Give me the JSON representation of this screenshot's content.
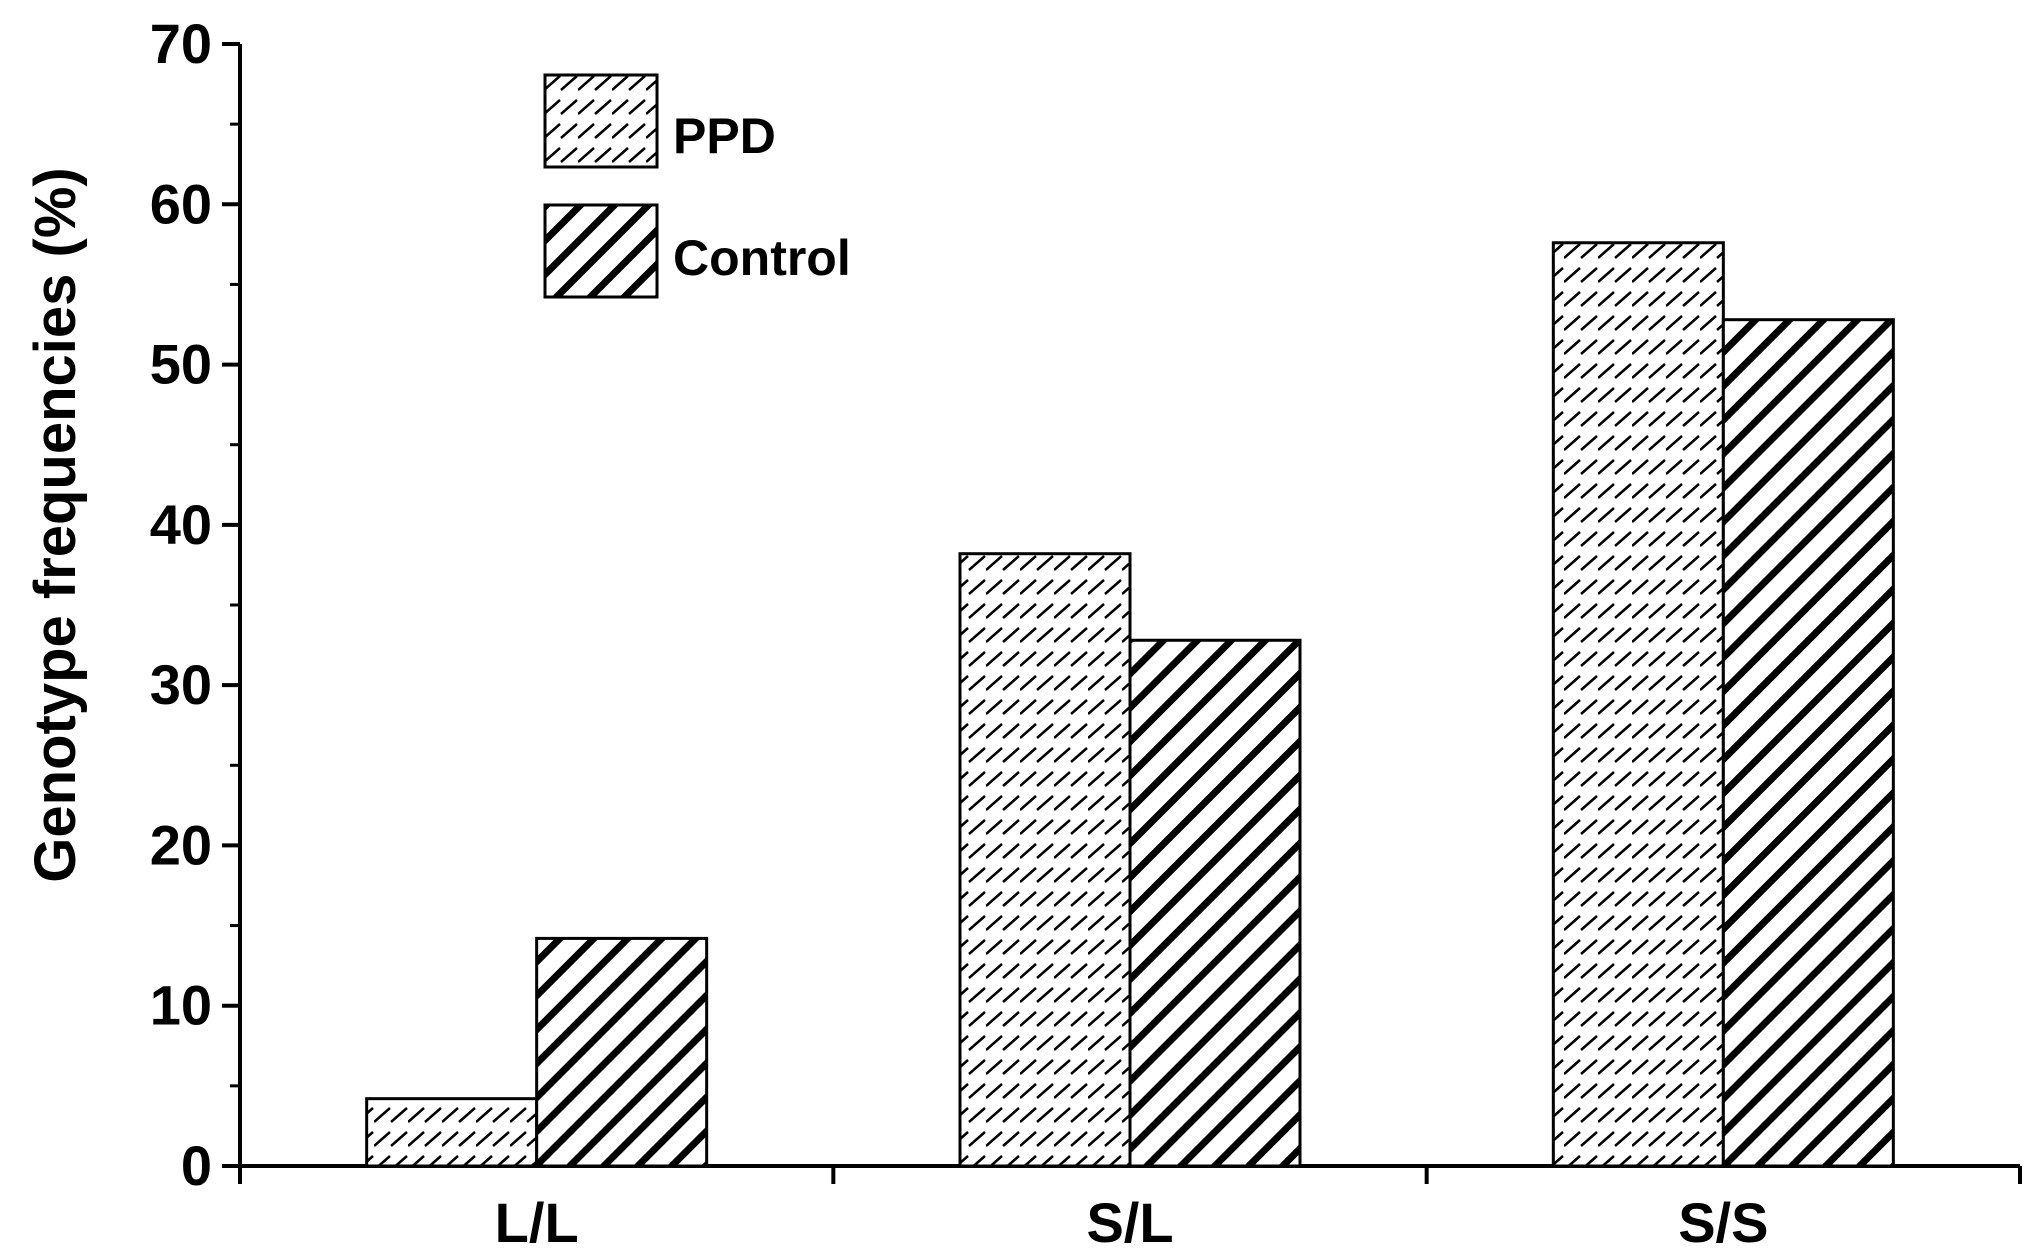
{
  "chart_data": {
    "type": "bar",
    "title": "",
    "xlabel": "",
    "ylabel": "Genotype frequencies (%)",
    "categories": [
      "L/L",
      "S/L",
      "S/S"
    ],
    "series": [
      {
        "name": "PPD",
        "values": [
          4.2,
          38.2,
          57.6
        ],
        "pattern": "light-hatch"
      },
      {
        "name": "Control",
        "values": [
          14.2,
          32.8,
          52.8
        ],
        "pattern": "bold-hatch"
      }
    ],
    "ylim": [
      0,
      70
    ],
    "yticks": [
      0,
      10,
      20,
      30,
      40,
      50,
      60,
      70
    ],
    "grid": false,
    "legend_position": "top-left",
    "colors": {
      "axis": "#000000",
      "fill": "#ffffff",
      "hatch": "#000000"
    }
  }
}
